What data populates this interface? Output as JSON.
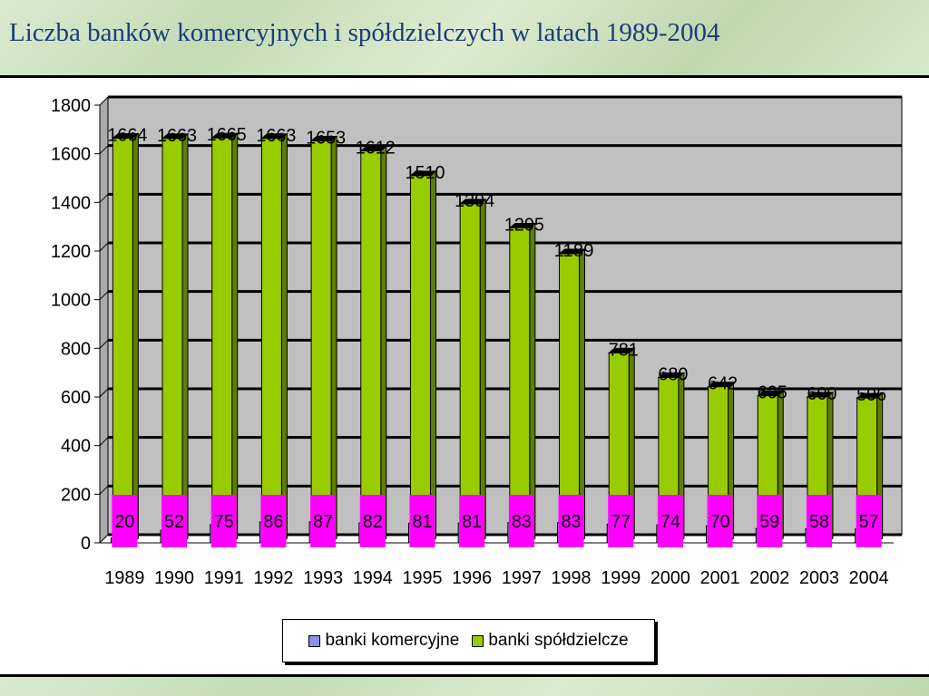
{
  "page": {
    "title": "Liczba banków komercyjnych i spółdzielczych w latach 1989-2004"
  },
  "colors": {
    "commercial": "#8f8fe6",
    "cooperative": "#99cc00",
    "label_box": "#ff00ff",
    "plot_bg": "#c0c0c0"
  },
  "chart_data": {
    "type": "bar",
    "categories": [
      "1989",
      "1990",
      "1991",
      "1992",
      "1993",
      "1994",
      "1995",
      "1996",
      "1997",
      "1998",
      "1999",
      "2000",
      "2001",
      "2002",
      "2003",
      "2004"
    ],
    "series": [
      {
        "name": "banki komercyjne",
        "values": [
          20,
          52,
          75,
          86,
          87,
          82,
          81,
          81,
          83,
          83,
          77,
          74,
          70,
          59,
          58,
          57
        ]
      },
      {
        "name": "banki spółdzielcze",
        "values": [
          1664,
          1663,
          1665,
          1663,
          1653,
          1612,
          1510,
          1394,
          1295,
          1189,
          781,
          680,
          642,
          605,
          600,
          596
        ]
      }
    ],
    "ylim": [
      0,
      1800
    ],
    "yticks": [
      0,
      200,
      400,
      600,
      800,
      1000,
      1200,
      1400,
      1600,
      1800
    ],
    "grid": true,
    "legend_position": "bottom"
  }
}
